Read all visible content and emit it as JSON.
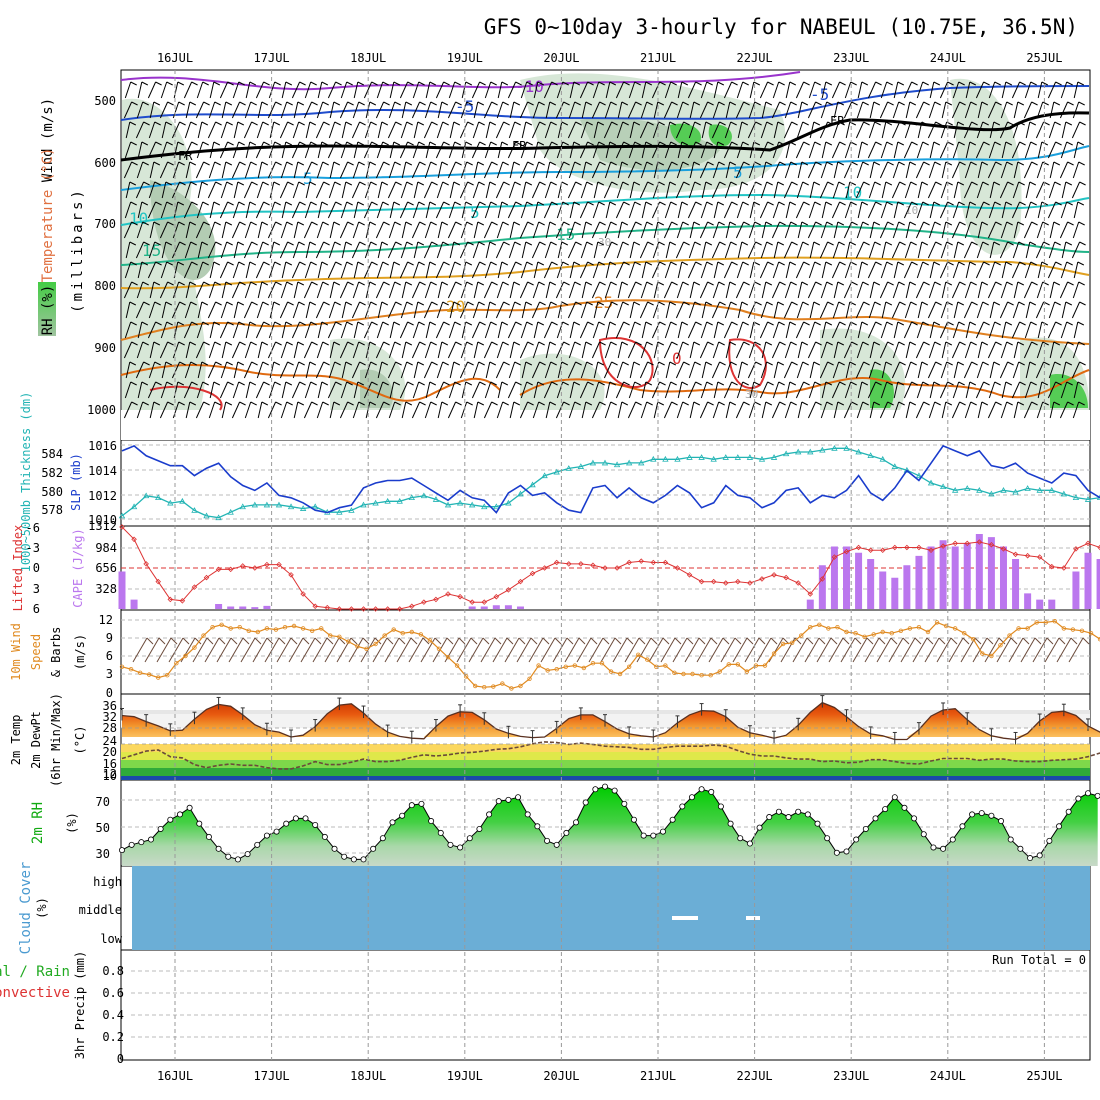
{
  "title": "GFS 0~10day 3-hourly for NABEUL (10.75E, 36.5N)",
  "dates": [
    "16JUL",
    "17JUL",
    "18JUL",
    "19JUL",
    "20JUL",
    "21JUL",
    "22JUL",
    "23JUL",
    "24JUL",
    "25JUL"
  ],
  "colors": {
    "rh_fill": "#c8dcc8",
    "rh_dark": "#8fae8f",
    "rh_wet": "#44cc44",
    "slp": "#1a3ccc",
    "thickness": "#22b4b4",
    "lifted_index": "#dd3333",
    "cape": "#bb77ee",
    "wind_speed": "#e08a20",
    "dewpoint": "#6b4a3a",
    "rh2m": "#11cc11",
    "cloud_cover": "#6baed6",
    "cloud_white": "#ffffff"
  },
  "panels": {
    "upper_air": {
      "ylabel_wind": "Wind (m/s)",
      "ylabel_temp": "Temperature (°C)",
      "ylabel_rh": "RH (%)",
      "ylabel_p": "(millibars)",
      "y_ticks": [
        "500",
        "600",
        "700",
        "800",
        "900",
        "1000"
      ],
      "contour_labels": [
        "-10",
        "-5",
        "5",
        "FR",
        "FR",
        "FR",
        "5",
        "10",
        "15",
        "10",
        "5",
        "10",
        "15",
        "20",
        "25",
        "30",
        "-10",
        "30",
        "0",
        "-5"
      ]
    },
    "slp": {
      "ylabel_thick": "1000~500mb Thickness (dm)",
      "ylabel_slp": "SLP (mb)",
      "thick_ticks": [
        "584",
        "582",
        "580",
        "578"
      ],
      "slp_ticks": [
        "1016",
        "1014",
        "1012",
        "1010"
      ]
    },
    "cape": {
      "ylabel_li": "Lifted Index",
      "ylabel_cape": "CAPE (J/kg)",
      "li_ticks": [
        "-6",
        "-3",
        "0",
        "3",
        "6"
      ],
      "cape_ticks": [
        "1312",
        "984",
        "656",
        "328"
      ]
    },
    "wind10m": {
      "ylabel_a": "10m Wind",
      "ylabel_b": "Speed",
      "ylabel_c": "& Barbs",
      "ylabel_unit": "(m/s)",
      "y_ticks": [
        "0",
        "3",
        "6",
        "9",
        "12"
      ]
    },
    "temp2m": {
      "ylabel_a": "2m Temp",
      "ylabel_b": "2m DewPt",
      "ylabel_c": "(6hr Min/Max)",
      "ylabel_unit": "(°C)",
      "y_ticks": [
        "36",
        "32",
        "28",
        "24",
        "20",
        "16",
        "12",
        "10"
      ]
    },
    "rh2m": {
      "ylabel_a": "2m RH",
      "ylabel_unit": "(%)",
      "y_ticks": [
        "70",
        "50",
        "30"
      ]
    },
    "cloud": {
      "ylabel_a": "Cloud Cover",
      "ylabel_unit": "(%)",
      "levels": [
        "high",
        "middle",
        "low"
      ]
    },
    "precip": {
      "ylabel_a": "Total / Rain",
      "ylabel_b": "Convective",
      "ylabel_c": "3hr Precip (mm)",
      "run_total": "Run Total = 0",
      "y_ticks": [
        "0.8",
        "0.6",
        "0.4",
        "0.2",
        "0"
      ]
    }
  },
  "chart_data": [
    {
      "type": "line",
      "title": "SLP (mb)",
      "x_start": "15JUL 12Z",
      "x_step_hours": 3,
      "ylim": [
        1009.6,
        1016.4
      ],
      "values": [
        1015.6,
        1016.0,
        1015.2,
        1014.8,
        1014.4,
        1014.4,
        1013.6,
        1014.2,
        1014.6,
        1013.5,
        1012.8,
        1012.4,
        1013.0,
        1012.0,
        1011.8,
        1011.4,
        1010.8,
        1010.6,
        1011.0,
        1011.2,
        1012.6,
        1013.0,
        1013.2,
        1013.2,
        1013.4,
        1012.8,
        1012.2,
        1011.6,
        1012.4,
        1011.8,
        1011.6,
        1010.6,
        1012.2,
        1012.8,
        1012.0,
        1012.2,
        1011.4,
        1010.8,
        1010.6,
        1012.6,
        1012.8,
        1011.8,
        1012.6,
        1011.8,
        1011.4,
        1012.0,
        1012.8,
        1012.2,
        1011.0,
        1011.4,
        1012.8,
        1012.0,
        1011.8,
        1011.0,
        1011.4,
        1012.4,
        1012.6,
        1011.4,
        1012.0,
        1011.8,
        1012.4,
        1013.6,
        1012.2,
        1011.6,
        1012.6,
        1014.0,
        1013.2,
        1014.6,
        1016.0,
        1015.6,
        1015.2,
        1015.6,
        1014.4,
        1014.2,
        1014.6,
        1013.8,
        1013.4,
        1013.0,
        1013.8,
        1013.6,
        1012.4,
        1011.8,
        1012.6,
        1012.2,
        1010.6,
        1010.4,
        1010.0,
        1009.8,
        1010.4,
        1010.0,
        1010.4,
        1011.6,
        1012.0
      ],
      "series2_name": "1000~500mb Thickness (dm)",
      "series2_ylim": [
        576.6,
        585.8
      ],
      "series2": [
        577.6,
        578.6,
        579.8,
        579.6,
        579.0,
        579.2,
        578.2,
        577.6,
        577.4,
        578.0,
        578.6,
        578.8,
        578.8,
        578.8,
        578.6,
        578.4,
        578.6,
        578.0,
        578.0,
        578.2,
        578.8,
        579.0,
        579.2,
        579.2,
        579.6,
        579.8,
        579.4,
        578.8,
        579.0,
        578.8,
        578.6,
        578.6,
        579.0,
        580.0,
        581.0,
        582.0,
        582.4,
        582.8,
        583.0,
        583.4,
        583.4,
        583.2,
        583.4,
        583.4,
        583.8,
        583.8,
        583.8,
        584.0,
        584.0,
        583.8,
        584.0,
        584.0,
        584.0,
        583.8,
        584.0,
        584.4,
        584.6,
        584.6,
        584.8,
        585.0,
        585.0,
        584.6,
        584.2,
        583.8,
        583.0,
        582.6,
        582.0,
        581.2,
        580.8,
        580.4,
        580.6,
        580.4,
        580.0,
        580.4,
        580.2,
        580.6,
        580.4,
        580.4,
        580.0,
        579.6,
        579.4,
        579.6,
        579.8,
        579.4,
        579.0,
        579.4,
        579.8,
        580.2,
        580.6,
        580.8,
        580.4,
        580.6,
        580.4
      ]
    },
    {
      "type": "bar",
      "title": "CAPE (J/kg)",
      "x_start": "15JUL 12Z",
      "x_step_hours": 3,
      "ylim": [
        0,
        1312
      ],
      "values": [
        600,
        150,
        0,
        0,
        0,
        0,
        0,
        0,
        80,
        40,
        40,
        30,
        50,
        0,
        0,
        0,
        0,
        0,
        0,
        0,
        0,
        0,
        0,
        0,
        0,
        0,
        0,
        0,
        0,
        40,
        40,
        60,
        60,
        40,
        0,
        0,
        0,
        0,
        0,
        0,
        0,
        0,
        0,
        0,
        0,
        0,
        0,
        0,
        0,
        0,
        0,
        0,
        0,
        0,
        0,
        0,
        0,
        150,
        700,
        1000,
        1000,
        900,
        800,
        600,
        500,
        700,
        850,
        1000,
        1100,
        1000,
        1050,
        1200,
        1150,
        1000,
        800,
        250,
        150,
        150,
        0,
        600,
        900,
        800,
        80,
        20,
        0,
        0,
        0,
        0,
        0,
        0,
        0,
        0,
        0
      ],
      "series2_name": "Lifted Index",
      "series2_ylim": [
        6,
        -6
      ],
      "series2": [
        -6.0,
        -4.2,
        -0.6,
        2.0,
        4.6,
        4.8,
        2.8,
        1.4,
        0.2,
        0.2,
        -0.3,
        0.0,
        -0.5,
        -0.5,
        1.0,
        3.8,
        5.6,
        5.8,
        6.0,
        6.0,
        6.0,
        6.0,
        6.0,
        6.0,
        5.6,
        5.0,
        4.6,
        3.8,
        4.2,
        5.0,
        5.0,
        4.2,
        3.2,
        2.0,
        0.8,
        0.0,
        -0.8,
        -0.6,
        -0.6,
        -0.4,
        0.0,
        0.0,
        -0.8,
        -1.0,
        -0.8,
        -0.8,
        0.0,
        1.0,
        2.0,
        2.0,
        2.2,
        2.0,
        2.2,
        1.6,
        1.0,
        1.4,
        2.2,
        3.8,
        1.6,
        -1.6,
        -2.4,
        -3.0,
        -2.6,
        -2.6,
        -3.0,
        -3.0,
        -3.0,
        -2.6,
        -3.2,
        -3.6,
        -3.6,
        -3.8,
        -3.4,
        -2.8,
        -2.0,
        -1.8,
        -1.6,
        -0.2,
        0.0,
        -2.8,
        -3.6,
        -3.0,
        -2.4,
        0.0,
        3.0,
        5.0,
        6.0,
        6.0,
        6.0,
        6.0,
        6.0,
        6.0,
        6.0
      ]
    },
    {
      "type": "line",
      "title": "10m Wind Speed (m/s)",
      "x_start": "15JUL 12Z",
      "x_step_hours": 3,
      "ylim": [
        0,
        12
      ],
      "values": [
        4.2,
        3.8,
        3.2,
        2.9,
        2.4,
        2.8,
        4.8,
        6.0,
        7.4,
        9.4,
        10.8,
        11.2,
        10.6,
        10.8,
        10.2,
        10.0,
        10.6,
        10.4,
        10.8,
        11.0,
        10.6,
        10.2,
        10.6,
        9.4,
        9.2,
        8.4,
        7.6,
        7.2,
        8.0,
        9.4,
        10.4,
        9.8,
        10.0,
        9.6,
        8.6,
        7.2,
        5.8,
        4.4,
        2.6,
        1.0,
        0.8,
        0.9,
        1.4,
        0.6,
        1.0,
        2.2,
        4.4,
        3.6,
        3.8,
        4.2,
        4.4,
        4.0,
        4.8,
        4.8,
        3.4,
        3.0,
        4.2,
        6.2,
        5.4,
        4.2,
        4.4,
        3.2,
        3.0,
        3.0,
        2.8,
        2.8,
        3.4,
        4.6,
        4.6,
        3.4,
        4.4,
        4.4,
        6.4,
        8.0,
        8.2,
        9.4,
        10.8,
        11.2,
        10.6,
        10.8,
        10.0,
        9.8,
        9.2,
        9.6,
        10.0,
        9.8,
        10.2,
        10.6,
        10.8,
        10.0,
        11.6,
        11.0,
        10.6,
        9.8,
        8.8,
        6.4,
        6.0,
        7.8,
        9.4,
        10.6,
        10.6,
        11.6,
        11.6,
        11.8,
        10.6,
        10.4,
        10.2,
        9.8,
        8.8,
        9.6,
        9.6,
        9.0
      ]
    },
    {
      "type": "area",
      "title": "2m Temp / 2m DewPt (°C)",
      "x_start": "15JUL 12Z",
      "x_step_hours": 3,
      "ylim": [
        10,
        38
      ],
      "values": [
        31.0,
        30.6,
        29.0,
        27.6,
        26.0,
        26.2,
        29.8,
        33.0,
        34.6,
        34.0,
        31.2,
        28.0,
        26.2,
        25.6,
        24.0,
        24.6,
        27.4,
        31.6,
        34.4,
        34.8,
        31.8,
        28.2,
        25.6,
        24.2,
        23.6,
        23.4,
        27.4,
        30.8,
        32.2,
        32.0,
        29.6,
        26.6,
        25.2,
        24.2,
        23.8,
        24.0,
        26.8,
        30.0,
        31.2,
        31.2,
        29.0,
        26.6,
        25.0,
        24.4,
        24.0,
        25.4,
        28.6,
        31.2,
        32.6,
        32.4,
        30.6,
        27.2,
        25.4,
        24.6,
        23.6,
        24.6,
        27.8,
        32.0,
        35.2,
        33.6,
        30.6,
        27.4,
        25.0,
        24.4,
        23.2,
        23.2,
        26.4,
        30.8,
        32.8,
        33.2,
        29.6,
        26.4,
        24.4,
        23.6,
        23.2,
        25.2,
        29.2,
        32.0,
        32.4,
        31.0,
        27.6,
        25.6,
        24.2,
        24.0,
        23.0,
        26.8,
        31.2,
        34.4,
        34.0,
        31.2,
        27.8,
        25.2,
        24.0
      ],
      "series2_name": "2m DewPt",
      "series2": [
        17.0,
        18.2,
        19.4,
        19.8,
        17.6,
        17.2,
        15.0,
        14.0,
        14.8,
        15.2,
        14.8,
        14.8,
        14.0,
        13.6,
        13.6,
        14.6,
        16.0,
        15.0,
        15.0,
        15.8,
        16.8,
        16.0,
        16.0,
        16.4,
        17.4,
        18.2,
        17.8,
        18.2,
        18.8,
        19.0,
        19.4,
        20.0,
        20.2,
        20.8,
        21.8,
        22.4,
        22.2,
        21.6,
        22.0,
        21.6,
        21.0,
        20.8,
        20.6,
        20.0,
        20.0,
        20.6,
        21.0,
        21.0,
        21.0,
        21.4,
        21.0,
        19.6,
        18.4,
        17.8,
        17.8,
        17.2,
        16.8,
        16.8,
        16.0,
        16.2,
        15.6,
        15.8,
        16.6,
        16.6,
        16.0,
        15.4,
        15.2,
        16.2,
        17.0,
        17.0,
        17.0,
        16.4,
        16.8,
        16.8,
        16.2,
        16.0,
        16.0,
        16.4,
        16.6,
        16.8,
        17.6,
        18.8,
        18.2,
        18.0,
        17.0,
        17.2,
        18.0,
        19.6,
        21.6,
        21.6
      ]
    },
    {
      "type": "area",
      "title": "2m RH (%)",
      "x_start": "15JUL 12Z",
      "x_step_hours": 3,
      "ylim": [
        23,
        88
      ],
      "values": [
        35,
        39,
        41,
        43,
        51,
        58,
        62,
        67,
        55,
        45,
        36,
        30,
        28,
        32,
        39,
        46,
        49,
        55,
        59,
        59,
        54,
        45,
        36,
        30,
        28,
        28,
        36,
        44,
        56,
        61,
        69,
        70,
        57,
        48,
        39,
        37,
        44,
        51,
        62,
        72,
        73,
        75,
        62,
        53,
        42,
        39,
        48,
        56,
        71,
        81,
        83,
        80,
        70,
        58,
        46,
        46,
        49,
        58,
        68,
        75,
        81,
        79,
        68,
        55,
        44,
        40,
        52,
        60,
        64,
        60,
        64,
        62,
        55,
        44,
        33,
        34,
        43,
        51,
        59,
        66,
        75,
        67,
        59,
        47,
        37,
        36,
        43,
        53,
        62,
        63,
        61,
        57,
        43,
        36,
        29,
        31,
        42,
        53,
        64,
        74,
        78,
        76
      ]
    },
    {
      "type": "bar",
      "title": "3hr Precip (mm)",
      "x_start": "15JUL 12Z",
      "x_step_hours": 3,
      "ylim": [
        0,
        1.0
      ],
      "values": [
        0,
        0,
        0,
        0,
        0,
        0,
        0,
        0,
        0,
        0,
        0,
        0,
        0,
        0,
        0,
        0,
        0,
        0,
        0,
        0,
        0,
        0,
        0,
        0,
        0,
        0,
        0,
        0,
        0,
        0,
        0,
        0,
        0,
        0,
        0,
        0,
        0,
        0,
        0,
        0,
        0,
        0,
        0,
        0,
        0,
        0,
        0,
        0,
        0,
        0,
        0,
        0,
        0,
        0,
        0,
        0,
        0,
        0,
        0,
        0,
        0,
        0,
        0,
        0,
        0,
        0,
        0,
        0,
        0,
        0,
        0,
        0,
        0,
        0,
        0,
        0,
        0,
        0,
        0,
        0
      ]
    }
  ]
}
